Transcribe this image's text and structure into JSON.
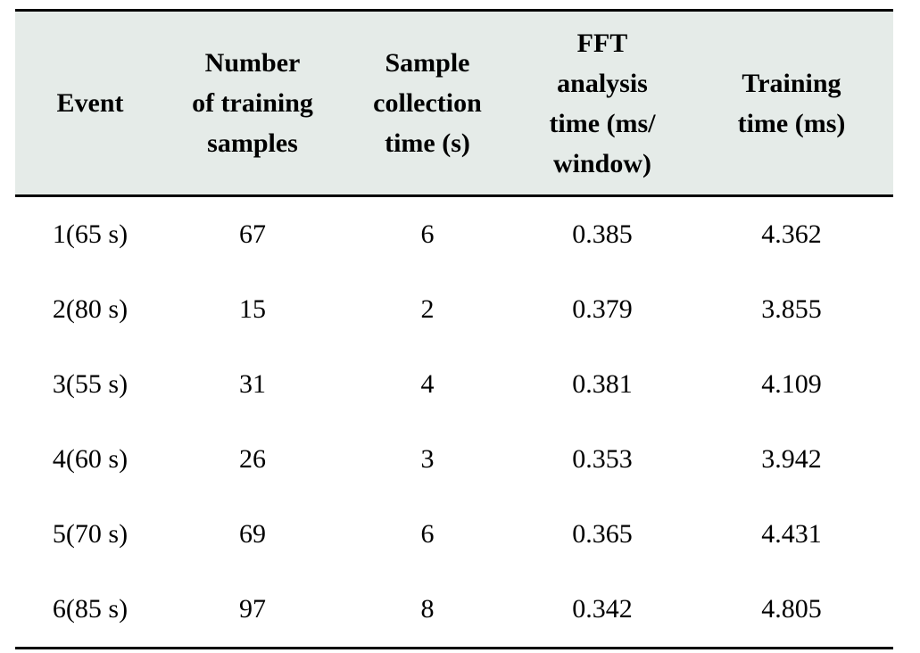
{
  "table": {
    "columns": [
      "Event",
      "Number\nof training\nsamples",
      "Sample\ncollection\ntime (s)",
      "FFT\nanalysis\ntime (ms/\nwindow)",
      "Training\ntime (ms)"
    ],
    "rows": [
      [
        "1(65 s)",
        "67",
        "6",
        "0.385",
        "4.362"
      ],
      [
        "2(80 s)",
        "15",
        "2",
        "0.379",
        "3.855"
      ],
      [
        "3(55 s)",
        "31",
        "4",
        "0.381",
        "4.109"
      ],
      [
        "4(60 s)",
        "26",
        "3",
        "0.353",
        "3.942"
      ],
      [
        "5(70 s)",
        "69",
        "6",
        "0.365",
        "4.431"
      ],
      [
        "6(85 s)",
        "97",
        "8",
        "0.342",
        "4.805"
      ]
    ]
  },
  "colors": {
    "header_background": "#e5ebe8",
    "rule": "#000000"
  }
}
